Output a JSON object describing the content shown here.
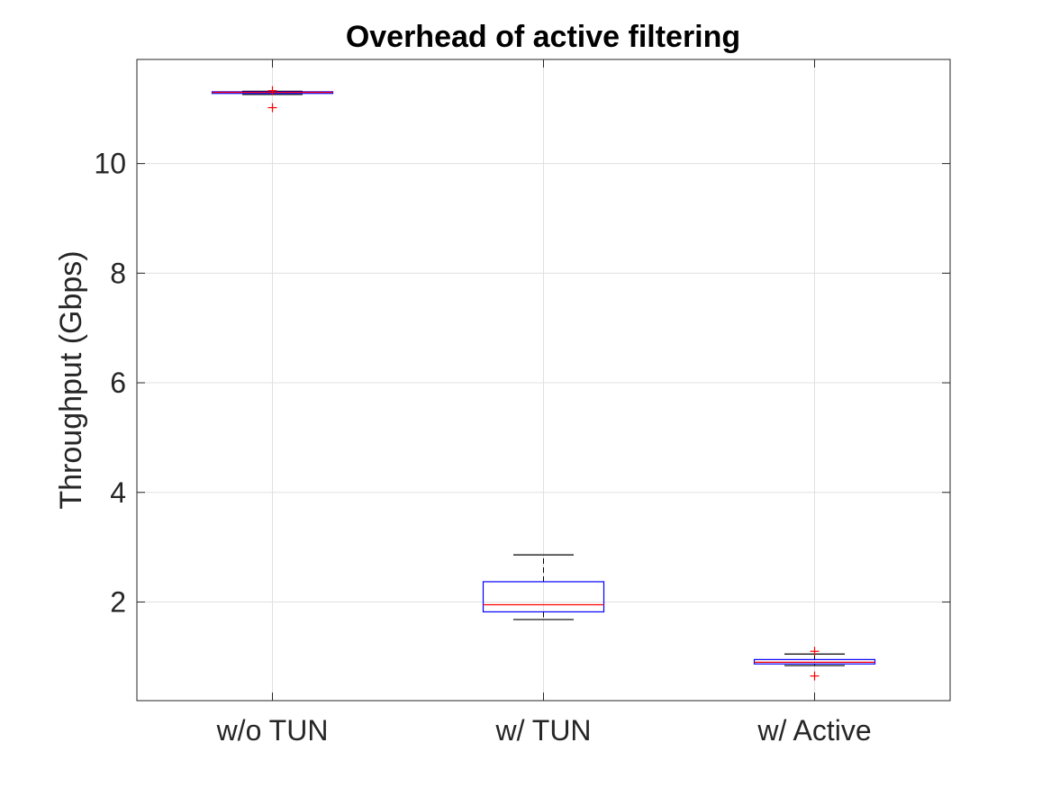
{
  "chart_data": {
    "type": "box",
    "title": "Overhead of active filtering",
    "xlabel": "",
    "ylabel": "Throughput (Gbps)",
    "ylim": [
      0.2,
      11.9
    ],
    "yticks": [
      2,
      4,
      6,
      8,
      10
    ],
    "grid": true,
    "categories": [
      "w/o TUN",
      "w/ TUN",
      "w/ Active"
    ],
    "boxes": [
      {
        "category": "w/o TUN",
        "whisker_low": 11.26,
        "q1": 11.28,
        "median": 11.3,
        "q3": 11.31,
        "whisker_high": 11.32,
        "outliers": [
          11.02,
          11.33
        ]
      },
      {
        "category": "w/ TUN",
        "whisker_low": 1.68,
        "q1": 1.82,
        "median": 1.95,
        "q3": 2.37,
        "whisker_high": 2.86,
        "outliers": []
      },
      {
        "category": "w/ Active",
        "whisker_low": 0.84,
        "q1": 0.87,
        "median": 0.9,
        "q3": 0.95,
        "whisker_high": 1.05,
        "outliers": [
          0.65,
          1.1
        ]
      }
    ],
    "colors": {
      "box": "#0000ff",
      "median": "#ff0000",
      "whisker": "#000000",
      "outlier": "#ff0000",
      "grid": "#e0e0e0",
      "axis": "#262626"
    }
  }
}
